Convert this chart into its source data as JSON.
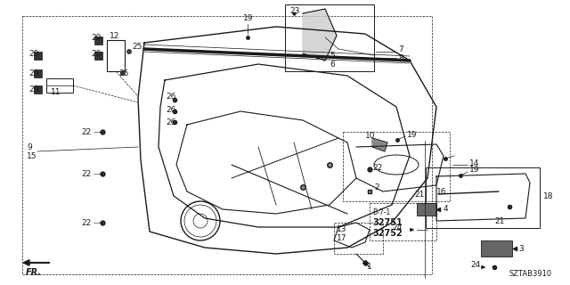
{
  "bg_color": "#ffffff",
  "diagram_id": "SZTAB3910",
  "lc": "#1a1a1a",
  "fig_width": 6.4,
  "fig_height": 3.2,
  "dpi": 100
}
